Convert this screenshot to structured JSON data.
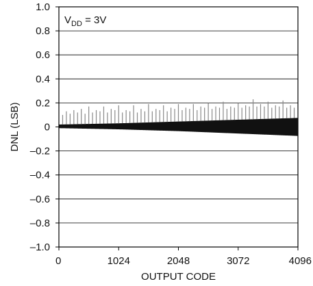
{
  "chart_data": {
    "type": "line",
    "title": "",
    "annotation": {
      "prefix": "V",
      "subscript": "DD",
      "suffix": " = 3V"
    },
    "xlabel": "OUTPUT CODE",
    "ylabel": "DNL (LSB)",
    "xlim": [
      0,
      4096
    ],
    "ylim": [
      -1.0,
      1.0
    ],
    "xticks": [
      0,
      1024,
      2048,
      3072,
      4096
    ],
    "xtick_labels": [
      "0",
      "1024",
      "2048",
      "3072",
      "4096"
    ],
    "yticks": [
      1.0,
      0.8,
      0.6,
      0.4,
      0.2,
      0,
      -0.2,
      -0.4,
      -0.6,
      -0.8,
      -1.0
    ],
    "ytick_labels": [
      "1.0",
      "0.8",
      "0.6",
      "0.4",
      "0.2",
      "0",
      "–0.2",
      "–0.4",
      "–0.6",
      "–0.8",
      "–1.0"
    ],
    "grid": "horizontal",
    "colors": {
      "band": "#111111",
      "spikes": "#888888",
      "grid": "#000000"
    },
    "series": [
      {
        "band_upper": {
          "x": [
            0,
            1024,
            2048,
            3072,
            4096
          ],
          "y": [
            0.02,
            0.03,
            0.045,
            0.06,
            0.075
          ]
        },
        "band_lower": {
          "x": [
            0,
            1024,
            2048,
            3072,
            4096
          ],
          "y": [
            -0.01,
            -0.02,
            -0.035,
            -0.055,
            -0.075
          ]
        },
        "spikes": {
          "x": [
            64,
            128,
            192,
            256,
            320,
            384,
            448,
            512,
            576,
            640,
            704,
            768,
            832,
            896,
            960,
            1024,
            1088,
            1152,
            1216,
            1280,
            1344,
            1408,
            1472,
            1536,
            1600,
            1664,
            1728,
            1792,
            1856,
            1920,
            1984,
            2048,
            2112,
            2176,
            2240,
            2304,
            2368,
            2432,
            2496,
            2560,
            2624,
            2688,
            2752,
            2816,
            2880,
            2944,
            3008,
            3072,
            3136,
            3200,
            3264,
            3328,
            3392,
            3456,
            3520,
            3584,
            3648,
            3712,
            3776,
            3840,
            3904,
            3968,
            4032
          ],
          "y": [
            0.1,
            0.13,
            0.11,
            0.14,
            0.12,
            0.15,
            0.11,
            0.17,
            0.12,
            0.14,
            0.13,
            0.17,
            0.12,
            0.15,
            0.14,
            0.18,
            0.12,
            0.14,
            0.13,
            0.18,
            0.12,
            0.15,
            0.13,
            0.19,
            0.13,
            0.15,
            0.14,
            0.18,
            0.13,
            0.16,
            0.15,
            0.19,
            0.14,
            0.16,
            0.15,
            0.19,
            0.14,
            0.17,
            0.16,
            0.2,
            0.15,
            0.17,
            0.16,
            0.21,
            0.15,
            0.17,
            0.16,
            0.2,
            0.16,
            0.18,
            0.17,
            0.23,
            0.17,
            0.19,
            0.17,
            0.21,
            0.16,
            0.18,
            0.17,
            0.22,
            0.16,
            0.18,
            0.16
          ]
        }
      }
    ]
  }
}
